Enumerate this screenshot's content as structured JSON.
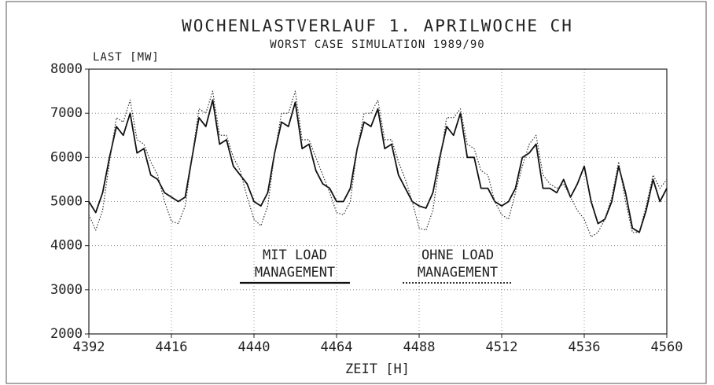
{
  "chart_data": {
    "type": "line",
    "title": "WOCHENLASTVERLAUF 1. APRILWOCHE CH",
    "subtitle": "WORST CASE SIMULATION 1989/90",
    "y_label": "LAST [MW]",
    "x_label": "ZEIT [H]",
    "x": [
      4392,
      4394,
      4396,
      4398,
      4400,
      4402,
      4404,
      4406,
      4408,
      4410,
      4412,
      4414,
      4416,
      4418,
      4420,
      4422,
      4424,
      4426,
      4428,
      4430,
      4432,
      4434,
      4436,
      4438,
      4440,
      4442,
      4444,
      4446,
      4448,
      4450,
      4452,
      4454,
      4456,
      4458,
      4460,
      4462,
      4464,
      4466,
      4468,
      4470,
      4472,
      4474,
      4476,
      4478,
      4480,
      4482,
      4484,
      4486,
      4488,
      4490,
      4492,
      4494,
      4496,
      4498,
      4500,
      4502,
      4504,
      4506,
      4508,
      4510,
      4512,
      4514,
      4516,
      4518,
      4520,
      4522,
      4524,
      4526,
      4528,
      4530,
      4532,
      4534,
      4536,
      4538,
      4540,
      4542,
      4544,
      4546,
      4548,
      4550,
      4552,
      4554,
      4556,
      4558,
      4560
    ],
    "series": [
      {
        "name": "MIT LOAD MANAGEMENT",
        "color": "#111111",
        "style": "solid",
        "values": [
          5000,
          4750,
          5200,
          6000,
          6700,
          6500,
          7000,
          6100,
          6200,
          5600,
          5500,
          5200,
          5100,
          5000,
          5100,
          6000,
          6900,
          6700,
          7300,
          6300,
          6400,
          5800,
          5600,
          5400,
          5000,
          4900,
          5200,
          6100,
          6800,
          6700,
          7250,
          6200,
          6300,
          5700,
          5400,
          5300,
          5000,
          5000,
          5300,
          6200,
          6800,
          6700,
          7100,
          6200,
          6300,
          5600,
          5300,
          5000,
          4900,
          4850,
          5200,
          6000,
          6700,
          6500,
          7000,
          6000,
          6000,
          5300,
          5300,
          5000,
          4900,
          5000,
          5300,
          6000,
          6100,
          6300,
          5300,
          5300,
          5200,
          5500,
          5100,
          5400,
          5800,
          5000,
          4500,
          4600,
          5000,
          5800,
          5200,
          4400,
          4300,
          4800,
          5500,
          5000,
          5300
        ]
      },
      {
        "name": "OHNE LOAD MANAGEMENT",
        "color": "#333333",
        "style": "dotted",
        "values": [
          4700,
          4350,
          4800,
          5900,
          6900,
          6800,
          7300,
          6400,
          6300,
          5900,
          5600,
          5000,
          4550,
          4500,
          4900,
          6000,
          7100,
          7000,
          7500,
          6500,
          6500,
          6000,
          5700,
          5100,
          4600,
          4450,
          4900,
          6100,
          7000,
          7000,
          7500,
          6400,
          6400,
          6000,
          5600,
          5200,
          4750,
          4700,
          5000,
          6200,
          7000,
          7000,
          7300,
          6400,
          6400,
          5900,
          5500,
          5000,
          4400,
          4350,
          4800,
          5900,
          6900,
          6900,
          7100,
          6300,
          6200,
          5700,
          5600,
          5000,
          4700,
          4600,
          5200,
          5800,
          6300,
          6500,
          5600,
          5400,
          5300,
          5400,
          5100,
          4800,
          4600,
          4200,
          4300,
          4600,
          5100,
          5900,
          5000,
          4300,
          4300,
          4900,
          5600,
          5300,
          5500
        ]
      }
    ],
    "xlim": [
      4392,
      4560
    ],
    "xticks": [
      4392,
      4416,
      4440,
      4464,
      4488,
      4512,
      4536,
      4560
    ],
    "ylim": [
      2000,
      8000
    ],
    "yticks": [
      2000,
      3000,
      4000,
      5000,
      6000,
      7000,
      8000
    ],
    "grid": true
  }
}
